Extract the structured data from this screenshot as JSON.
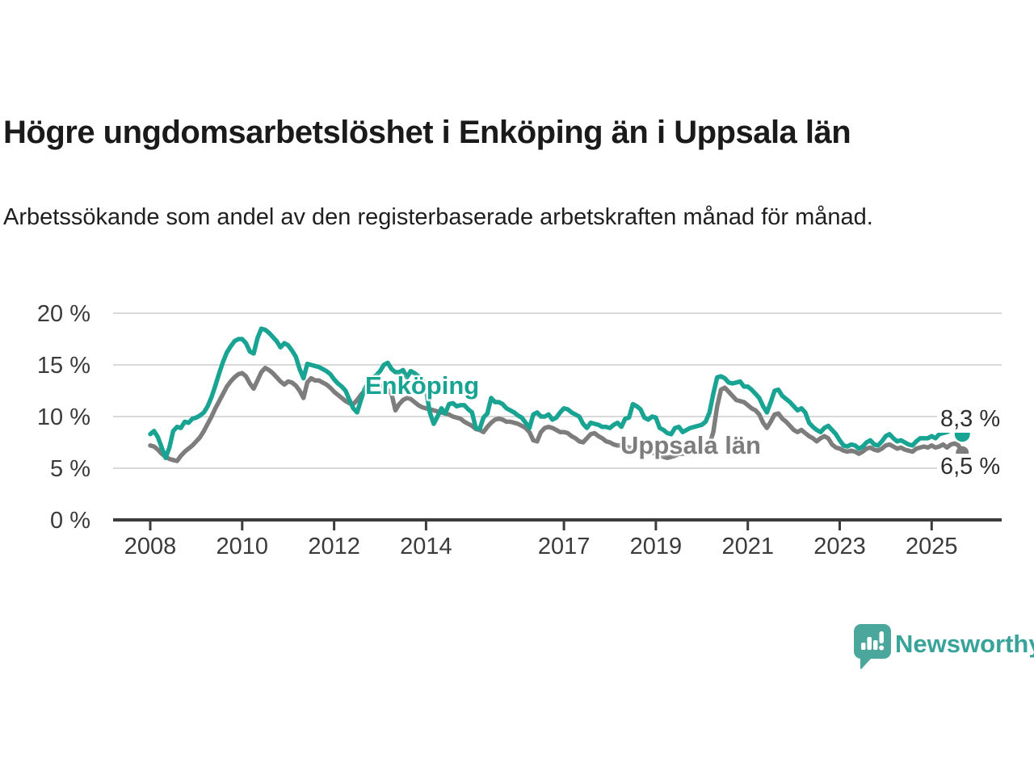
{
  "header": {
    "title": "Högre ungdomsarbetslöshet i Enköping än i Uppsala län",
    "subtitle": "Arbetssökande som andel av den registerbaserade arbetskraften månad för månad."
  },
  "chart_data": {
    "type": "line",
    "frequency": "monthly",
    "x_start_year": 2008,
    "x_end": "2025-09",
    "xlabel": "",
    "ylabel": "",
    "unit": "%",
    "ylim": [
      0,
      20
    ],
    "grid": "horizontal",
    "legend_position": "inline-labels",
    "x_ticks": [
      2008,
      2010,
      2012,
      2014,
      2017,
      2019,
      2021,
      2023,
      2025
    ],
    "y_ticks": [
      0,
      5,
      10,
      15,
      20
    ],
    "y_tick_suffix": " %",
    "series": [
      {
        "name": "Uppsala län",
        "color": "#7d7d7d",
        "end_label": "6,5 %",
        "end_value": 6.5,
        "values": [
          7.2,
          7.1,
          6.8,
          6.4,
          6.1,
          5.9,
          5.8,
          5.7,
          6.2,
          6.6,
          6.9,
          7.2,
          7.6,
          8.0,
          8.6,
          9.3,
          10.0,
          10.8,
          11.5,
          12.2,
          12.9,
          13.4,
          13.8,
          14.1,
          14.2,
          13.9,
          13.2,
          12.7,
          13.5,
          14.3,
          14.7,
          14.5,
          14.2,
          13.8,
          13.4,
          13.1,
          13.4,
          13.3,
          13.0,
          12.5,
          11.8,
          13.3,
          13.7,
          13.5,
          13.5,
          13.3,
          13.1,
          12.8,
          12.4,
          12.1,
          11.8,
          11.5,
          11.3,
          11.2,
          11.6,
          12.1,
          12.5,
          12.8,
          12.9,
          13.0,
          13.0,
          12.9,
          12.6,
          12.2,
          10.6,
          11.2,
          11.6,
          11.8,
          11.7,
          11.4,
          11.1,
          10.9,
          10.8,
          10.7,
          10.6,
          10.5,
          10.4,
          10.3,
          10.2,
          10.0,
          9.9,
          9.8,
          9.5,
          9.3,
          9.1,
          8.8,
          8.7,
          8.5,
          9.0,
          9.4,
          9.7,
          9.8,
          9.7,
          9.5,
          9.5,
          9.4,
          9.3,
          9.1,
          8.9,
          8.5,
          7.7,
          7.6,
          8.5,
          8.9,
          9.0,
          8.9,
          8.7,
          8.5,
          8.5,
          8.4,
          8.1,
          7.9,
          7.6,
          7.5,
          7.9,
          8.3,
          8.4,
          8.1,
          7.9,
          7.6,
          7.5,
          7.3,
          7.2,
          7.2,
          7.1,
          7.0,
          6.9,
          6.9,
          6.8,
          6.7,
          6.6,
          6.5,
          6.4,
          6.3,
          6.1,
          6.0,
          6.1,
          6.2,
          6.4,
          6.4,
          6.5,
          6.5,
          6.6,
          6.6,
          6.7,
          6.8,
          7.3,
          8.5,
          11.0,
          12.6,
          12.8,
          12.4,
          12.0,
          11.6,
          11.5,
          11.4,
          11.1,
          10.8,
          10.6,
          10.2,
          9.4,
          8.9,
          9.5,
          10.2,
          10.3,
          9.8,
          9.5,
          9.1,
          8.7,
          8.5,
          8.7,
          8.4,
          8.1,
          7.9,
          7.6,
          7.9,
          8.1,
          7.9,
          7.3,
          7.0,
          6.9,
          6.7,
          6.6,
          6.7,
          6.6,
          6.4,
          6.6,
          6.9,
          7.0,
          6.8,
          6.7,
          6.9,
          7.2,
          7.3,
          7.1,
          6.9,
          7.0,
          6.8,
          6.7,
          6.6,
          6.9,
          7.0,
          7.1,
          7.0,
          7.2,
          7.0,
          7.1,
          7.3,
          7.0,
          7.3,
          7.4,
          7.2,
          6.5
        ]
      },
      {
        "name": "Enköping",
        "color": "#18a392",
        "end_label": "8,3 %",
        "end_value": 8.3,
        "values": [
          8.3,
          8.6,
          8.0,
          7.0,
          6.0,
          7.0,
          8.6,
          9.0,
          8.9,
          9.5,
          9.4,
          9.8,
          9.9,
          10.1,
          10.4,
          11.0,
          11.9,
          13.0,
          14.2,
          15.3,
          16.2,
          16.8,
          17.3,
          17.5,
          17.5,
          17.1,
          16.3,
          16.1,
          17.6,
          18.5,
          18.4,
          18.1,
          17.7,
          17.3,
          16.7,
          17.1,
          16.9,
          16.4,
          15.8,
          14.6,
          13.7,
          15.1,
          15.0,
          14.9,
          14.8,
          14.6,
          14.4,
          14.1,
          13.6,
          13.2,
          12.9,
          12.5,
          11.6,
          10.8,
          10.4,
          11.6,
          12.7,
          13.3,
          13.7,
          14.0,
          14.4,
          15.0,
          15.2,
          14.6,
          14.3,
          14.3,
          14.5,
          13.8,
          14.4,
          14.2,
          13.9,
          13.6,
          12.6,
          10.4,
          9.3,
          10.0,
          10.8,
          10.3,
          11.2,
          11.3,
          11.0,
          11.1,
          11.1,
          10.7,
          10.4,
          8.9,
          8.8,
          9.9,
          10.3,
          11.8,
          11.4,
          11.4,
          11.2,
          10.8,
          10.6,
          10.4,
          10.1,
          9.9,
          9.4,
          8.9,
          10.2,
          10.4,
          10.0,
          10.0,
          10.2,
          9.7,
          9.9,
          10.4,
          10.8,
          10.7,
          10.4,
          10.2,
          10.0,
          9.3,
          8.9,
          9.4,
          9.3,
          9.2,
          9.0,
          9.0,
          8.9,
          9.2,
          9.4,
          9.0,
          9.8,
          9.9,
          11.2,
          11.0,
          10.7,
          9.9,
          9.7,
          10.0,
          9.9,
          8.9,
          8.7,
          8.4,
          8.3,
          8.9,
          9.0,
          8.5,
          8.7,
          8.9,
          9.0,
          9.1,
          9.2,
          9.5,
          10.4,
          12.2,
          13.8,
          13.9,
          13.7,
          13.3,
          13.2,
          13.3,
          13.4,
          12.9,
          12.9,
          12.6,
          12.2,
          11.8,
          11.0,
          10.4,
          11.4,
          12.5,
          12.6,
          12.0,
          11.7,
          11.4,
          11.0,
          10.6,
          10.8,
          10.4,
          9.4,
          9.0,
          8.7,
          8.5,
          8.9,
          9.1,
          8.7,
          8.3,
          7.7,
          7.2,
          7.1,
          7.3,
          7.2,
          6.9,
          7.1,
          7.5,
          7.7,
          7.3,
          7.2,
          7.6,
          8.1,
          8.3,
          7.9,
          7.6,
          7.7,
          7.5,
          7.3,
          7.2,
          7.6,
          7.9,
          7.9,
          7.9,
          8.1,
          7.9,
          8.3,
          8.4,
          8.5,
          8.7,
          8.9,
          8.6,
          8.3
        ]
      }
    ],
    "colors": {
      "gridline": "#d9d9d9",
      "axis": "#3c3c3c",
      "tick_text": "#3b3b3b"
    }
  },
  "annotations": {
    "enkoping_label": "Enköping",
    "uppsala_label": "Uppsala län",
    "enkoping_end": "8,3 %",
    "uppsala_end": "6,5 %"
  },
  "footer": {
    "brand": "Newsworthy",
    "brand_color": "#38a398",
    "logo_color": "#4ba69c"
  }
}
